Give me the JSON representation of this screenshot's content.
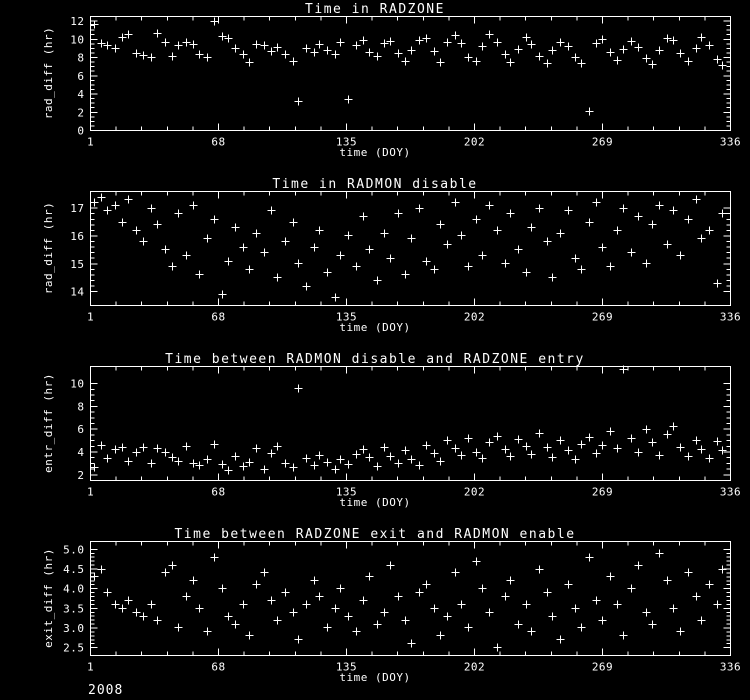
{
  "page": {
    "background": "#000000",
    "foreground": "#ffffff",
    "footer_year": "2008"
  },
  "chart_data": [
    {
      "type": "scatter",
      "title": "Time in RADZONE",
      "xlabel": "time (DOY)",
      "ylabel": "rad_diff (hr)",
      "marker": "plus",
      "grid": false,
      "legend": "none",
      "xlim": [
        1,
        336
      ],
      "ylim": [
        0,
        12.5
      ],
      "xticks": [
        1,
        68,
        135,
        202,
        269,
        336
      ],
      "yticks": [
        0,
        2,
        4,
        6,
        8,
        10,
        12
      ],
      "xminor": 5,
      "yminor": 4,
      "x": [
        3,
        7,
        10,
        14,
        18,
        21,
        25,
        29,
        33,
        36,
        40,
        44,
        47,
        51,
        55,
        58,
        62,
        66,
        70,
        73,
        77,
        81,
        84,
        88,
        92,
        96,
        99,
        103,
        107,
        110,
        114,
        118,
        121,
        125,
        129,
        132,
        136,
        140,
        144,
        147,
        151,
        155,
        158,
        162,
        166,
        169,
        173,
        177,
        181,
        184,
        188,
        192,
        195,
        199,
        203,
        206,
        210,
        214,
        218,
        221,
        225,
        229,
        232,
        236,
        240,
        243,
        247,
        251,
        255,
        258,
        262,
        266,
        269,
        273,
        277,
        280,
        284,
        288,
        292,
        295,
        299,
        303,
        306,
        310,
        314,
        318,
        321,
        325,
        329,
        332
      ],
      "y": [
        11.6,
        9.5,
        9.3,
        9.0,
        10.2,
        10.5,
        8.4,
        8.2,
        8.0,
        10.6,
        9.6,
        8.1,
        9.3,
        9.6,
        9.4,
        8.3,
        8.0,
        11.9,
        10.3,
        10.1,
        9.0,
        8.3,
        7.5,
        9.4,
        9.3,
        8.7,
        9.1,
        8.3,
        7.6,
        3.2,
        9.0,
        8.6,
        9.4,
        8.8,
        8.3,
        9.6,
        3.4,
        9.3,
        9.9,
        8.6,
        8.1,
        9.5,
        9.8,
        8.4,
        7.6,
        8.8,
        9.9,
        10.1,
        8.7,
        7.5,
        9.6,
        10.4,
        9.5,
        8.0,
        7.6,
        9.2,
        10.5,
        9.7,
        8.3,
        7.5,
        8.9,
        10.2,
        9.4,
        8.1,
        7.3,
        8.8,
        9.6,
        9.2,
        8.0,
        7.4,
        2.1,
        9.5,
        10.0,
        8.6,
        7.7,
        8.9,
        9.8,
        9.1,
        7.9,
        7.2,
        8.8,
        10.1,
        9.9,
        8.4,
        7.6,
        9.0,
        10.2,
        9.3,
        7.8,
        7.1
      ]
    },
    {
      "type": "scatter",
      "title": "Time in RADMON disable",
      "xlabel": "time (DOY)",
      "ylabel": "rad_diff (hr)",
      "marker": "plus",
      "grid": false,
      "legend": "none",
      "xlim": [
        1,
        336
      ],
      "ylim": [
        13.5,
        17.6
      ],
      "xticks": [
        1,
        68,
        135,
        202,
        269,
        336
      ],
      "yticks": [
        14,
        15,
        16,
        17
      ],
      "xminor": 5,
      "yminor": 5,
      "x": [
        3,
        7,
        10,
        14,
        18,
        21,
        25,
        29,
        33,
        36,
        40,
        44,
        47,
        51,
        55,
        58,
        62,
        66,
        70,
        73,
        77,
        81,
        84,
        88,
        92,
        96,
        99,
        103,
        107,
        110,
        114,
        118,
        121,
        125,
        129,
        132,
        136,
        140,
        144,
        147,
        151,
        155,
        158,
        162,
        166,
        169,
        173,
        177,
        181,
        184,
        188,
        192,
        195,
        199,
        203,
        206,
        210,
        214,
        218,
        221,
        225,
        229,
        232,
        236,
        240,
        243,
        247,
        251,
        255,
        258,
        262,
        266,
        269,
        273,
        277,
        280,
        284,
        288,
        292,
        295,
        299,
        303,
        306,
        310,
        314,
        318,
        321,
        325,
        329,
        332
      ],
      "y": [
        17.2,
        17.4,
        16.9,
        17.1,
        16.5,
        17.3,
        16.2,
        15.8,
        17.0,
        16.4,
        15.5,
        14.9,
        16.8,
        15.3,
        17.1,
        14.6,
        15.9,
        16.6,
        13.9,
        15.1,
        16.3,
        15.6,
        14.8,
        16.1,
        15.4,
        16.9,
        14.5,
        15.8,
        16.5,
        15.0,
        14.2,
        15.6,
        16.2,
        14.7,
        13.8,
        15.3,
        16.0,
        14.9,
        16.7,
        15.5,
        14.4,
        16.1,
        15.2,
        16.8,
        14.6,
        15.9,
        17.0,
        15.1,
        14.8,
        16.4,
        15.7,
        17.2,
        16.0,
        14.9,
        16.6,
        15.3,
        17.1,
        16.2,
        15.0,
        16.8,
        15.5,
        14.7,
        16.3,
        17.0,
        15.8,
        14.5,
        16.1,
        16.9,
        15.2,
        14.8,
        16.5,
        17.2,
        15.6,
        14.9,
        16.2,
        17.0,
        15.4,
        16.7,
        15.0,
        16.4,
        17.1,
        15.7,
        16.9,
        15.3,
        16.6,
        17.3,
        15.9,
        16.2,
        14.3,
        16.8
      ]
    },
    {
      "type": "scatter",
      "title": "Time between RADMON disable and RADZONE entry",
      "xlabel": "time (DOY)",
      "ylabel": "entr_diff (hr)",
      "marker": "plus",
      "grid": false,
      "legend": "none",
      "xlim": [
        1,
        336
      ],
      "ylim": [
        1.5,
        11.5
      ],
      "xticks": [
        1,
        68,
        135,
        202,
        269,
        336
      ],
      "yticks": [
        2,
        4,
        6,
        8,
        10
      ],
      "xminor": 5,
      "yminor": 4,
      "x": [
        3,
        7,
        10,
        14,
        18,
        21,
        25,
        29,
        33,
        36,
        40,
        44,
        47,
        51,
        55,
        58,
        62,
        66,
        70,
        73,
        77,
        81,
        84,
        88,
        92,
        96,
        99,
        103,
        107,
        110,
        114,
        118,
        121,
        125,
        129,
        132,
        136,
        140,
        144,
        147,
        151,
        155,
        158,
        162,
        166,
        169,
        173,
        177,
        181,
        184,
        188,
        192,
        195,
        199,
        203,
        206,
        210,
        214,
        218,
        221,
        225,
        229,
        232,
        236,
        240,
        243,
        247,
        251,
        255,
        258,
        262,
        266,
        269,
        273,
        277,
        280,
        284,
        288,
        292,
        295,
        299,
        303,
        306,
        310,
        314,
        318,
        321,
        325,
        329,
        332
      ],
      "y": [
        2.6,
        4.6,
        3.4,
        4.2,
        4.4,
        3.2,
        4.0,
        4.4,
        3.0,
        4.3,
        4.0,
        3.5,
        3.2,
        4.5,
        3.0,
        2.8,
        3.3,
        4.7,
        2.9,
        2.4,
        3.6,
        2.7,
        3.1,
        4.3,
        2.5,
        3.9,
        4.5,
        3.0,
        2.6,
        9.6,
        3.4,
        2.8,
        3.7,
        3.1,
        2.5,
        3.3,
        2.9,
        3.8,
        4.2,
        3.5,
        2.7,
        4.4,
        3.6,
        3.0,
        4.1,
        3.3,
        2.8,
        4.6,
        3.9,
        3.2,
        5.0,
        4.3,
        3.7,
        5.2,
        4.0,
        3.4,
        4.8,
        5.4,
        4.2,
        3.6,
        5.1,
        4.5,
        3.8,
        5.6,
        4.4,
        3.5,
        5.0,
        4.1,
        3.3,
        4.7,
        5.3,
        3.9,
        4.6,
        5.8,
        4.3,
        11.2,
        5.2,
        4.0,
        6.0,
        4.8,
        3.7,
        5.5,
        6.2,
        4.4,
        3.6,
        5.0,
        4.2,
        3.4,
        4.9,
        4.1
      ]
    },
    {
      "type": "scatter",
      "title": "Time between RADZONE exit and RADMON enable",
      "xlabel": "time (DOY)",
      "ylabel": "exit_diff (hr)",
      "marker": "plus",
      "grid": false,
      "legend": "none",
      "xlim": [
        1,
        336
      ],
      "ylim": [
        2.3,
        5.2
      ],
      "xticks": [
        1,
        68,
        135,
        202,
        269,
        336
      ],
      "yticks": [
        2.5,
        3.0,
        3.5,
        4.0,
        4.5,
        5.0
      ],
      "yticklabels": [
        "2.5",
        "3.0",
        "3.5",
        "4.0",
        "4.5",
        "5.0"
      ],
      "xminor": 5,
      "yminor": 5,
      "x": [
        3,
        7,
        10,
        14,
        18,
        21,
        25,
        29,
        33,
        36,
        40,
        44,
        47,
        51,
        55,
        58,
        62,
        66,
        70,
        73,
        77,
        81,
        84,
        88,
        92,
        96,
        99,
        103,
        107,
        110,
        114,
        118,
        121,
        125,
        129,
        132,
        136,
        140,
        144,
        147,
        151,
        155,
        158,
        162,
        166,
        169,
        173,
        177,
        181,
        184,
        188,
        192,
        195,
        199,
        203,
        206,
        210,
        214,
        218,
        221,
        225,
        229,
        232,
        236,
        240,
        243,
        247,
        251,
        255,
        258,
        262,
        266,
        269,
        273,
        277,
        280,
        284,
        288,
        292,
        295,
        299,
        303,
        306,
        310,
        314,
        318,
        321,
        325,
        329,
        332
      ],
      "y": [
        4.3,
        4.5,
        3.9,
        3.6,
        3.5,
        3.7,
        3.4,
        3.3,
        3.6,
        3.2,
        4.4,
        4.6,
        3.0,
        3.8,
        4.2,
        3.5,
        2.9,
        4.8,
        4.0,
        3.3,
        3.1,
        3.6,
        2.8,
        4.1,
        4.4,
        3.7,
        3.2,
        3.9,
        3.4,
        2.7,
        3.6,
        4.2,
        3.8,
        3.0,
        3.5,
        4.0,
        3.3,
        2.9,
        3.7,
        4.3,
        3.1,
        3.4,
        4.6,
        3.8,
        3.2,
        2.6,
        3.9,
        4.1,
        3.5,
        2.8,
        3.3,
        4.4,
        3.6,
        3.0,
        4.7,
        4.0,
        3.4,
        2.5,
        3.8,
        4.2,
        3.1,
        3.6,
        2.9,
        4.5,
        3.9,
        3.3,
        2.7,
        4.1,
        3.5,
        3.0,
        4.8,
        3.7,
        3.2,
        4.3,
        3.6,
        2.8,
        4.0,
        4.6,
        3.4,
        3.1,
        4.9,
        4.2,
        3.5,
        2.9,
        4.4,
        3.8,
        3.2,
        4.1,
        3.6,
        4.5
      ]
    }
  ]
}
